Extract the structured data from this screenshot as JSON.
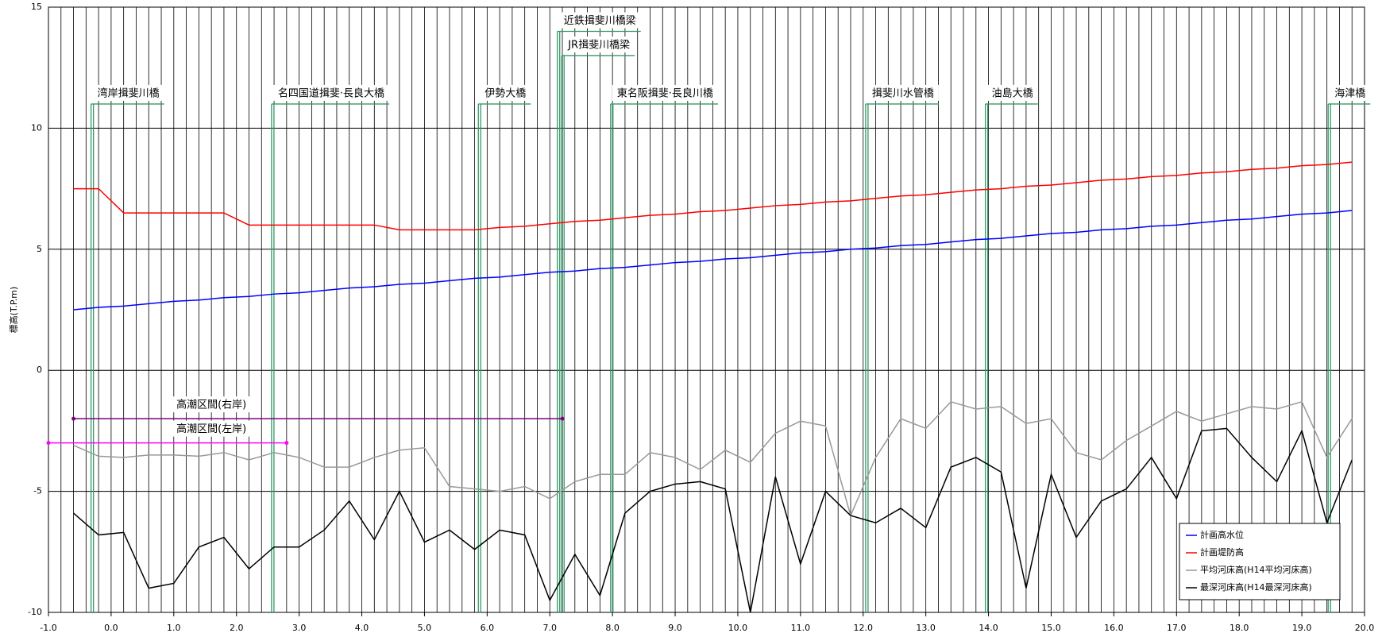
{
  "chart_data": {
    "type": "line",
    "ylabel": "標高(T.P.m)",
    "xlim": [
      -1.0,
      20.0
    ],
    "xticks": [
      {
        "value": -1,
        "label": "-1.0"
      },
      {
        "value": 0,
        "label": "0.0"
      },
      {
        "value": 1,
        "label": "1.0"
      },
      {
        "value": 2,
        "label": "2.0"
      },
      {
        "value": 3,
        "label": "3.0"
      },
      {
        "value": 4,
        "label": "4.0"
      },
      {
        "value": 5,
        "label": "5.0"
      },
      {
        "value": 6,
        "label": "6.0"
      },
      {
        "value": 7,
        "label": "7.0"
      },
      {
        "value": 8,
        "label": "8.0"
      },
      {
        "value": 9,
        "label": "9.0"
      },
      {
        "value": 10,
        "label": "10.0"
      },
      {
        "value": 11,
        "label": "11.0"
      },
      {
        "value": 12,
        "label": "12.0"
      },
      {
        "value": 13,
        "label": "13.0"
      },
      {
        "value": 14,
        "label": "14.0"
      },
      {
        "value": 15,
        "label": "15.0"
      },
      {
        "value": 16,
        "label": "16.0"
      },
      {
        "value": 17,
        "label": "17.0"
      },
      {
        "value": 18,
        "label": "18.0"
      },
      {
        "value": 19,
        "label": "19.0"
      },
      {
        "value": 20,
        "label": "20.0"
      }
    ],
    "xminor_step": 0.2,
    "ylim": [
      -10,
      15
    ],
    "yticks": [
      -10,
      -5,
      0,
      5,
      10,
      15
    ],
    "grid": true,
    "legend": "lower right",
    "x": [
      -0.6,
      -0.2,
      0.2,
      0.6,
      1.0,
      1.4,
      1.8,
      2.2,
      2.6,
      3.0,
      3.4,
      3.8,
      4.2,
      4.6,
      5.0,
      5.4,
      5.8,
      6.2,
      6.6,
      7.0,
      7.4,
      7.8,
      8.2,
      8.6,
      9.0,
      9.4,
      9.8,
      10.2,
      10.6,
      11.0,
      11.4,
      11.8,
      12.2,
      12.6,
      13.0,
      13.4,
      13.8,
      14.2,
      14.6,
      15.0,
      15.4,
      15.8,
      16.2,
      16.6,
      17.0,
      17.4,
      17.8,
      18.2,
      18.6,
      19.0,
      19.4,
      19.8
    ],
    "series": [
      {
        "name": "計画高水位",
        "color": "#0000ff",
        "values": [
          2.5,
          2.6,
          2.65,
          2.75,
          2.85,
          2.9,
          3.0,
          3.05,
          3.15,
          3.2,
          3.3,
          3.4,
          3.45,
          3.55,
          3.6,
          3.7,
          3.8,
          3.85,
          3.95,
          4.05,
          4.1,
          4.2,
          4.25,
          4.35,
          4.45,
          4.5,
          4.6,
          4.65,
          4.75,
          4.85,
          4.9,
          5.0,
          5.05,
          5.15,
          5.2,
          5.3,
          5.4,
          5.45,
          5.55,
          5.65,
          5.7,
          5.8,
          5.85,
          5.95,
          6.0,
          6.1,
          6.2,
          6.25,
          6.35,
          6.45,
          6.5,
          6.6
        ]
      },
      {
        "name": "計画堤防高",
        "color": "#ff0000",
        "values": [
          7.5,
          7.5,
          6.5,
          6.5,
          6.5,
          6.5,
          6.5,
          6.0,
          6.0,
          6.0,
          6.0,
          6.0,
          6.0,
          5.8,
          5.8,
          5.8,
          5.8,
          5.9,
          5.95,
          6.05,
          6.15,
          6.2,
          6.3,
          6.4,
          6.45,
          6.55,
          6.6,
          6.7,
          6.8,
          6.85,
          6.95,
          7.0,
          7.1,
          7.2,
          7.25,
          7.35,
          7.45,
          7.5,
          7.6,
          7.65,
          7.75,
          7.85,
          7.9,
          8.0,
          8.05,
          8.15,
          8.2,
          8.3,
          8.35,
          8.45,
          8.5,
          8.6
        ]
      },
      {
        "name": "平均河床高(H14平均河床高)",
        "color": "#999999",
        "values": [
          -3.1,
          -3.55,
          -3.6,
          -3.5,
          -3.5,
          -3.55,
          -3.4,
          -3.7,
          -3.4,
          -3.6,
          -4.0,
          -4.0,
          -3.6,
          -3.3,
          -3.2,
          -4.8,
          -4.9,
          -5.0,
          -4.8,
          -5.3,
          -4.6,
          -4.3,
          -4.3,
          -3.4,
          -3.6,
          -4.1,
          -3.3,
          -3.8,
          -2.6,
          -2.1,
          -2.3,
          -6.0,
          -3.6,
          -2.0,
          -2.4,
          -1.3,
          -1.6,
          -1.5,
          -2.2,
          -2.0,
          -3.4,
          -3.7,
          -2.9,
          -2.3,
          -1.7,
          -2.1,
          -1.8,
          -1.5,
          -1.6,
          -1.3,
          -3.6,
          -2.0
        ]
      },
      {
        "name": "最深河床高(H14最深河床高)",
        "color": "#000000",
        "values": [
          -5.9,
          -6.8,
          -6.7,
          -9.0,
          -8.8,
          -7.3,
          -6.9,
          -8.2,
          -7.3,
          -7.3,
          -6.6,
          -5.4,
          -7.0,
          -5.0,
          -7.1,
          -6.6,
          -7.4,
          -6.6,
          -6.8,
          -9.5,
          -7.6,
          -9.3,
          -5.9,
          -5.0,
          -4.7,
          -4.6,
          -4.9,
          -10.0,
          -4.4,
          -8.0,
          -5.0,
          -6.0,
          -6.3,
          -5.7,
          -6.5,
          -4.0,
          -3.6,
          -4.2,
          -9.0,
          -4.3,
          -6.9,
          -5.4,
          -4.9,
          -3.6,
          -5.3,
          -2.5,
          -2.4,
          -3.6,
          -4.6,
          -2.5,
          -6.3,
          -3.7
        ]
      }
    ],
    "bridges": [
      {
        "label": "湾岸揖斐川橋",
        "x": -0.32,
        "top": 11
      },
      {
        "label": "名四国道揖斐·長良大橋",
        "x": 2.56,
        "top": 11
      },
      {
        "label": "伊勢大橋",
        "x": 5.86,
        "top": 11
      },
      {
        "label": "近鉄揖斐川橋梁",
        "x": 7.12,
        "top": 14
      },
      {
        "label": "JR揖斐川橋梁",
        "x": 7.19,
        "top": 13
      },
      {
        "label": "東名阪揖斐·長良川橋",
        "x": 7.97,
        "top": 11
      },
      {
        "label": "揖斐川水管橋",
        "x": 12.04,
        "top": 11
      },
      {
        "label": "油島大橋",
        "x": 13.95,
        "top": 11
      },
      {
        "label": "海津橋",
        "x": 19.42,
        "top": 11
      }
    ],
    "sections": [
      {
        "label": "高潮区間(右岸)",
        "start": -0.6,
        "end": 7.2,
        "level": -2.0,
        "color": "#800080"
      },
      {
        "label": "高潮区間(左岸)",
        "start": -1.0,
        "end": 2.8,
        "level": -3.0,
        "color": "#ff00ff"
      }
    ],
    "bridge_color": "#339966"
  }
}
